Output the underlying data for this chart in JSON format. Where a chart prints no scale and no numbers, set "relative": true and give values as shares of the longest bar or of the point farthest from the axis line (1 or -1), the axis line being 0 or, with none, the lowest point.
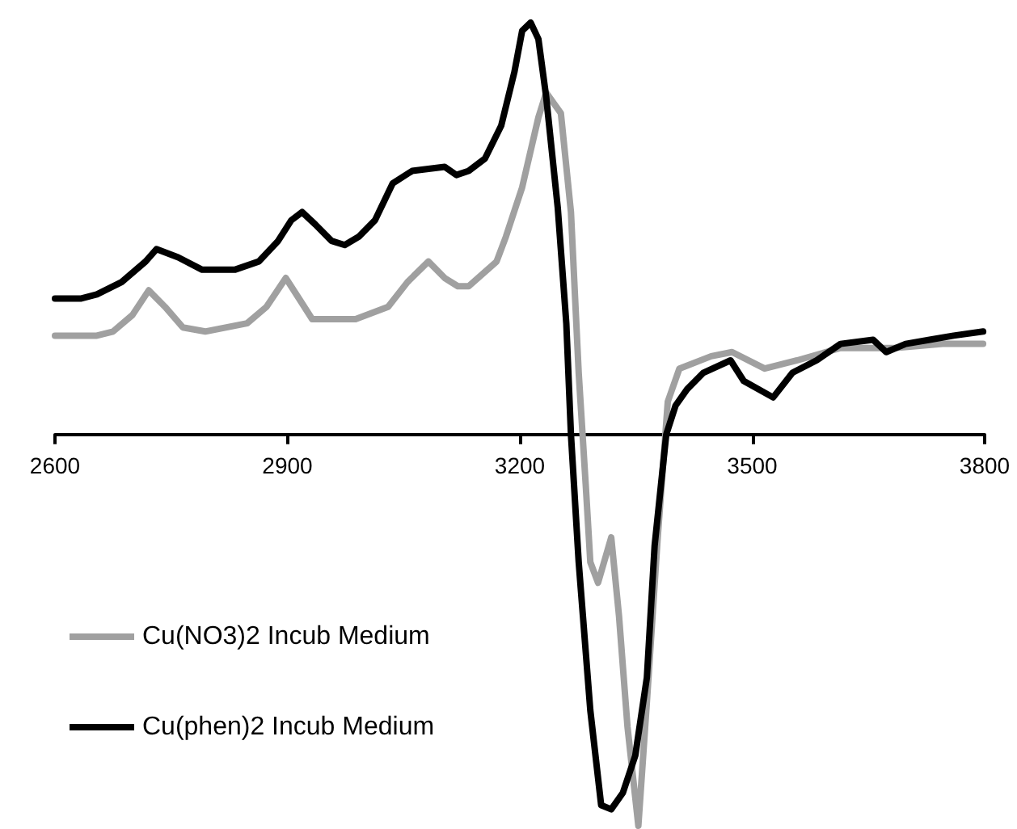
{
  "chart_data": {
    "type": "line",
    "relative": true,
    "legend": "bottom left",
    "xlim": [
      2600,
      3800
    ],
    "xticks": [
      2600,
      2900,
      3200,
      3500,
      3800
    ],
    "series": [
      {
        "name": "Cu(NO3)2 Incub Medium",
        "color": "#a0a0a0",
        "x": [
          2600,
          2654,
          2675,
          2700,
          2721,
          2742,
          2765,
          2794,
          2848,
          2873,
          2898,
          2915,
          2932,
          2988,
          3030,
          3055,
          3082,
          3103,
          3120,
          3134,
          3170,
          3182,
          3203,
          3224,
          3234,
          3253,
          3266,
          3276,
          3285,
          3291,
          3301,
          3318,
          3328,
          3339,
          3353,
          3364,
          3378,
          3391,
          3406,
          3447,
          3474,
          3516,
          3558,
          3614,
          3683,
          3746,
          3798
        ],
        "values": [
          0.24,
          0.24,
          0.25,
          0.29,
          0.35,
          0.31,
          0.26,
          0.25,
          0.27,
          0.31,
          0.38,
          0.33,
          0.28,
          0.28,
          0.31,
          0.37,
          0.42,
          0.38,
          0.36,
          0.36,
          0.42,
          0.48,
          0.6,
          0.77,
          0.83,
          0.78,
          0.54,
          0.15,
          -0.12,
          -0.31,
          -0.36,
          -0.25,
          -0.44,
          -0.71,
          -0.95,
          -0.65,
          -0.25,
          0.08,
          0.16,
          0.19,
          0.2,
          0.16,
          0.18,
          0.21,
          0.21,
          0.22,
          0.22
        ]
      },
      {
        "name": "Cu(phen)2 Incub Medium",
        "color": "#000000",
        "x": [
          2600,
          2633,
          2654,
          2686,
          2717,
          2731,
          2759,
          2790,
          2832,
          2863,
          2888,
          2905,
          2919,
          2936,
          2957,
          2974,
          2992,
          3013,
          3036,
          3061,
          3103,
          3118,
          3134,
          3155,
          3176,
          3193,
          3203,
          3214,
          3224,
          3234,
          3249,
          3260,
          3266,
          3276,
          3291,
          3305,
          3318,
          3333,
          3349,
          3364,
          3374,
          3389,
          3401,
          3416,
          3437,
          3472,
          3489,
          3527,
          3552,
          3583,
          3614,
          3656,
          3673,
          3698,
          3729,
          3760,
          3798
        ],
        "values": [
          0.33,
          0.33,
          0.34,
          0.37,
          0.42,
          0.45,
          0.43,
          0.4,
          0.4,
          0.42,
          0.47,
          0.52,
          0.54,
          0.51,
          0.47,
          0.46,
          0.48,
          0.52,
          0.61,
          0.64,
          0.65,
          0.63,
          0.64,
          0.67,
          0.75,
          0.88,
          0.98,
          1,
          0.96,
          0.82,
          0.55,
          0.27,
          0,
          -0.31,
          -0.67,
          -0.9,
          -0.91,
          -0.87,
          -0.78,
          -0.59,
          -0.27,
          0,
          0.07,
          0.11,
          0.15,
          0.18,
          0.13,
          0.09,
          0.15,
          0.18,
          0.22,
          0.23,
          0.2,
          0.22,
          0.23,
          0.24,
          0.25
        ]
      }
    ]
  }
}
